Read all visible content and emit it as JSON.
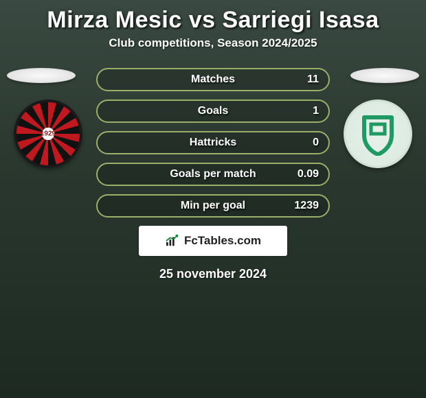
{
  "title": "Mirza Mesic vs Sarriegi Isasa",
  "subtitle": "Club competitions, Season 2024/2025",
  "row_border_color": "#9ab06a",
  "stats": [
    {
      "label": "Matches",
      "value": "11"
    },
    {
      "label": "Goals",
      "value": "1"
    },
    {
      "label": "Hattricks",
      "value": "0"
    },
    {
      "label": "Goals per match",
      "value": "0.09"
    },
    {
      "label": "Min per goal",
      "value": "1239"
    }
  ],
  "brand": "FcTables.com",
  "date": "25 november 2024",
  "club_right_color": "#1f9a63"
}
